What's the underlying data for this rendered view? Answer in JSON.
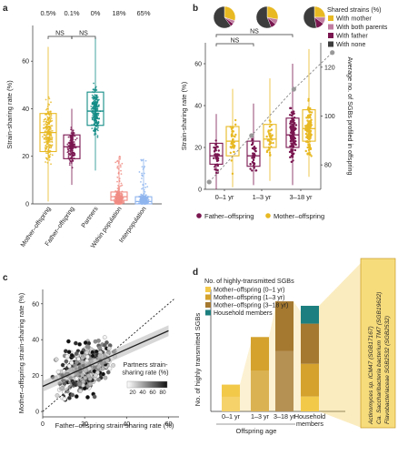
{
  "colors": {
    "mother": "#E8B923",
    "father": "#7A1650",
    "partners": "#138C86",
    "within": "#F08C84",
    "inter": "#8FB5EE",
    "both": "#C07CA0",
    "none": "#3C3C3C",
    "d_young": "#F3C94A",
    "d_mid": "#D4A22D",
    "d_old": "#A5792F",
    "d_house": "#1D7F7F"
  },
  "chart_data": [
    {
      "panel": "a",
      "type": "box",
      "ylabel": "Strain-sharing rate (%)",
      "ylim": [
        0,
        75
      ],
      "yticks": [
        0,
        20,
        40,
        60
      ],
      "categories": [
        "Mother–offspring",
        "Father–offspring",
        "Partners",
        "Within population",
        "Interpopulation"
      ],
      "zero_pct": [
        "0.5%",
        "0.1%",
        "0%",
        "18%",
        "65%"
      ],
      "boxes": [
        {
          "q1": 22,
          "median": 30,
          "q3": 38,
          "lw": 1,
          "uw": 66
        },
        {
          "q1": 19,
          "median": 24,
          "q3": 29,
          "lw": 8,
          "uw": 40
        },
        {
          "q1": 33,
          "median": 39,
          "q3": 47,
          "lw": 14,
          "uw": 70
        },
        {
          "q1": 1.5,
          "median": 3,
          "q3": 5,
          "lw": 0,
          "uw": 20
        },
        {
          "q1": 0,
          "median": 1,
          "q3": 3,
          "lw": 0,
          "uw": 19
        }
      ],
      "significance": [
        "NS",
        "NS"
      ]
    },
    {
      "panel": "b",
      "type": "box+line",
      "ylabel": "Strain-sharing rate (%)",
      "y2label": "Average no. of SGBs profiled in offspring",
      "ylim": [
        0,
        70
      ],
      "yticks": [
        0,
        20,
        40,
        60
      ],
      "y2lim": [
        70,
        130
      ],
      "y2ticks": [
        80,
        100,
        120
      ],
      "categories": [
        "0–1 yr",
        "1–3 yr",
        "3–18 yr"
      ],
      "series": [
        {
          "name": "Father–offspring",
          "boxes": [
            {
              "q1": 12,
              "median": 16,
              "q3": 22,
              "lw": 0,
              "uw": 36
            },
            {
              "q1": 11,
              "median": 16,
              "q3": 23,
              "lw": 2,
              "uw": 41
            },
            {
              "q1": 20,
              "median": 26,
              "q3": 34,
              "lw": 2,
              "uw": 60
            }
          ]
        },
        {
          "name": "Mother–offspring",
          "boxes": [
            {
              "q1": 16,
              "median": 23,
              "q3": 30,
              "lw": 1,
              "uw": 48
            },
            {
              "q1": 20,
              "median": 24,
              "q3": 31,
              "lw": 4,
              "uw": 53
            },
            {
              "q1": 23,
              "median": 29,
              "q3": 38,
              "lw": 6,
              "uw": 67
            }
          ]
        }
      ],
      "sgb_line": {
        "x": [
          0.1,
          1.2,
          2.3,
          3.3
        ],
        "y": [
          73,
          92,
          111,
          126
        ]
      },
      "significance": [
        "NS",
        "NS"
      ],
      "legend_title": "Shared strains (%)",
      "pie_legend": [
        "With mother",
        "With both parents",
        "With father",
        "With none"
      ],
      "pies": [
        {
          "mother": 0.3,
          "both": 0.05,
          "father": 0.05,
          "none": 0.6
        },
        {
          "mother": 0.28,
          "both": 0.08,
          "father": 0.08,
          "none": 0.56
        },
        {
          "mother": 0.25,
          "both": 0.1,
          "father": 0.12,
          "none": 0.53
        }
      ]
    },
    {
      "panel": "c",
      "type": "scatter",
      "xlabel": "Father–offspring strain-sharing rate (%)",
      "ylabel": "Mother–offspring strain-sharing rate (%)",
      "xlim": [
        0,
        65
      ],
      "ylim": [
        -3,
        68
      ],
      "xticks": [
        0,
        20,
        40,
        60
      ],
      "yticks": [
        0,
        20,
        40,
        60
      ],
      "fit": {
        "x": [
          0,
          60
        ],
        "y": [
          14,
          45
        ]
      },
      "legend_title": "Partners strain-sharing rate (%)",
      "legend_ticks": [
        "20",
        "40",
        "60",
        "80"
      ]
    },
    {
      "panel": "d",
      "type": "stacked bar",
      "ylabel": "No. of highly transmitted SGBs",
      "xlabel": "Offspring age",
      "ylim": [
        0,
        82
      ],
      "categories": [
        "0–1 yr",
        "1–3 yr",
        "3–18 yr",
        "Household members"
      ],
      "series": [
        {
          "name": "Mother–offspring (0–1 yr)",
          "values": [
            18,
            0,
            0,
            0
          ]
        },
        {
          "name": "Mother–offspring (1–3 yr)",
          "values": [
            0,
            50,
            0,
            0
          ]
        },
        {
          "name": "Mother–offspring (3–18 yr)",
          "values": [
            0,
            0,
            74,
            0
          ]
        },
        {
          "name": "Household members",
          "values": [
            0,
            0,
            0,
            71
          ]
        }
      ],
      "legend_title": "No. of highly-transmitted SGBs",
      "species_labels": [
        "Actinomyces sp. ICM47 (SGB17167)",
        "Ca. Saccharibacteria bacterium TM7 (SGB19622)",
        "Flavobacteriaceae SGB2532 (SGB2532)"
      ]
    }
  ],
  "labels": {
    "panel_a": "a",
    "panel_b": "b",
    "panel_c": "c",
    "panel_d": "d"
  }
}
